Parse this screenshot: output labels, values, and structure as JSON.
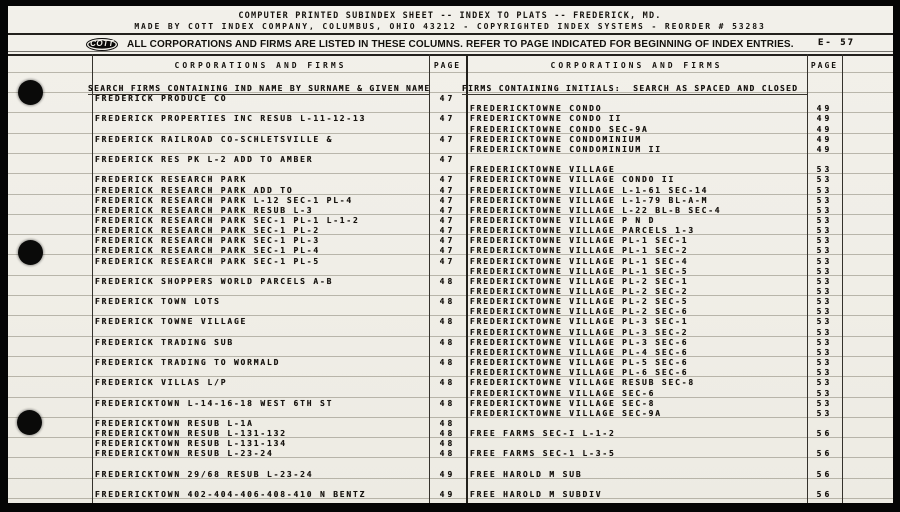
{
  "header": {
    "title_line1": "COMPUTER PRINTED SUBINDEX SHEET -- INDEX TO PLATS -- FREDERICK, MD.",
    "title_line2": "MADE BY COTT INDEX COMPANY, COLUMBUS, OHIO 43212 - COPYRIGHTED INDEX SYSTEMS - REORDER # 53283",
    "logo_text": "COTT",
    "instruction": "ALL CORPORATIONS AND FIRMS ARE LISTED IN THESE COLUMNS. REFER TO PAGE INDICATED FOR BEGINNING OF INDEX ENTRIES.",
    "sheet_code": "E- 57"
  },
  "colors": {
    "paper": "#f1efe8",
    "ink": "#16130f",
    "ruling": "#8b8779",
    "frame": "#050505"
  },
  "table": {
    "left": {
      "name_header": "CORPORATIONS AND FIRMS",
      "page_header": "PAGE",
      "groups": [
        [
          {
            "name": "SEARCH FIRMS CONTAINING IND NAME BY SURNAME & GIVEN NAME",
            "page": "",
            "note": true
          },
          {
            "name": "FREDERICK PRODUCE CO",
            "page": "47"
          }
        ],
        [
          {
            "name": "FREDERICK PROPERTIES INC RESUB L-11-12-13",
            "page": "47"
          }
        ],
        [
          {
            "name": "FREDERICK RAILROAD CO-SCHLETSVILLE &",
            "page": "47"
          }
        ],
        [
          {
            "name": "FREDERICK RES PK L-2 ADD TO AMBER",
            "page": "47"
          }
        ],
        [
          {
            "name": "FREDERICK RESEARCH PARK",
            "page": "47"
          },
          {
            "name": "FREDERICK RESEARCH PARK ADD TO",
            "page": "47"
          },
          {
            "name": "FREDERICK RESEARCH PARK L-12 SEC-1 PL-4",
            "page": "47"
          },
          {
            "name": "FREDERICK RESEARCH PARK RESUB L-3",
            "page": "47"
          },
          {
            "name": "FREDERICK RESEARCH PARK SEC-1 PL-1 L-1-2",
            "page": "47"
          },
          {
            "name": "FREDERICK RESEARCH PARK SEC-1 PL-2",
            "page": "47"
          },
          {
            "name": "FREDERICK RESEARCH PARK SEC-1 PL-3",
            "page": "47"
          },
          {
            "name": "FREDERICK RESEARCH PARK SEC-1 PL-4",
            "page": "47"
          },
          {
            "name": "FREDERICK RESEARCH PARK SEC-1 PL-5",
            "page": "47"
          }
        ],
        [
          {
            "name": "FREDERICK SHOPPERS WORLD PARCELS A-B",
            "page": "48"
          }
        ],
        [
          {
            "name": "FREDERICK TOWN LOTS",
            "page": "48"
          }
        ],
        [
          {
            "name": "FREDERICK TOWNE VILLAGE",
            "page": "48"
          }
        ],
        [
          {
            "name": "FREDERICK TRADING SUB",
            "page": "48"
          }
        ],
        [
          {
            "name": "FREDERICK TRADING TO WORMALD",
            "page": "48"
          }
        ],
        [
          {
            "name": "FREDERICK VILLAS L/P",
            "page": "48"
          }
        ],
        [
          {
            "name": "FREDERICKTOWN L-14-16-18 WEST 6TH ST",
            "page": "48"
          }
        ],
        [
          {
            "name": "FREDERICKTOWN RESUB L-1A",
            "page": "48"
          },
          {
            "name": "FREDERICKTOWN RESUB L-131-132",
            "page": "48"
          },
          {
            "name": "FREDERICKTOWN RESUB L-131-134",
            "page": "48"
          },
          {
            "name": "FREDERICKTOWN RESUB L-23-24",
            "page": "48"
          }
        ],
        [
          {
            "name": "FREDERICKTOWN 29/68 RESUB L-23-24",
            "page": "49"
          }
        ],
        [
          {
            "name": "FREDERICKTOWN 402-404-406-408-410 N BENTZ",
            "page": "49"
          }
        ]
      ]
    },
    "right": {
      "name_header": "CORPORATIONS AND FIRMS",
      "page_header": "PAGE",
      "groups": [
        [
          {
            "name": "FIRMS CONTAINING INITIALS:  SEARCH AS SPACED AND CLOSED",
            "page": "",
            "note": true
          }
        ],
        [
          {
            "name": "FREDERICKTOWNE CONDO",
            "page": "49"
          },
          {
            "name": "FREDERICKTOWNE CONDO II",
            "page": "49"
          },
          {
            "name": "FREDERICKTOWNE CONDO SEC-9A",
            "page": "49"
          },
          {
            "name": "FREDERICKTOWNE CONDOMINIUM",
            "page": "49"
          },
          {
            "name": "FREDERICKTOWNE CONDOMINIUM II",
            "page": "49"
          }
        ],
        [
          {
            "name": "FREDERICKTOWNE VILLAGE",
            "page": "53"
          },
          {
            "name": "FREDERICKTOWNE VILLAGE CONDO II",
            "page": "53"
          },
          {
            "name": "FREDERICKTOWNE VILLAGE L-1-61 SEC-14",
            "page": "53"
          },
          {
            "name": "FREDERICKTOWNE VILLAGE L-1-79 BL-A-M",
            "page": "53"
          },
          {
            "name": "FREDERICKTOWNE VILLAGE L-22 BL-B SEC-4",
            "page": "53"
          },
          {
            "name": "FREDERICKTOWNE VILLAGE P N D",
            "page": "53"
          },
          {
            "name": "FREDERICKTOWNE VILLAGE PARCELS 1-3",
            "page": "53"
          },
          {
            "name": "FREDERICKTOWNE VILLAGE PL-1 SEC-1",
            "page": "53"
          },
          {
            "name": "FREDERICKTOWNE VILLAGE PL-1 SEC-2",
            "page": "53"
          },
          {
            "name": "FREDERICKTOWNE VILLAGE PL-1 SEC-4",
            "page": "53"
          },
          {
            "name": "FREDERICKTOWNE VILLAGE PL-1 SEC-5",
            "page": "53"
          },
          {
            "name": "FREDERICKTOWNE VILLAGE PL-2 SEC-1",
            "page": "53"
          },
          {
            "name": "FREDERICKTOWNE VILLAGE PL-2 SEC-2",
            "page": "53"
          },
          {
            "name": "FREDERICKTOWNE VILLAGE PL-2 SEC-5",
            "page": "53"
          },
          {
            "name": "FREDERICKTOWNE VILLAGE PL-2 SEC-6",
            "page": "53"
          },
          {
            "name": "FREDERICKTOWNE VILLAGE PL-3 SEC-1",
            "page": "53"
          },
          {
            "name": "FREDERICKTOWNE VILLAGE PL-3 SEC-2",
            "page": "53"
          },
          {
            "name": "FREDERICKTOWNE VILLAGE PL-3 SEC-6",
            "page": "53"
          },
          {
            "name": "FREDERICKTOWNE VILLAGE PL-4 SEC-6",
            "page": "53"
          },
          {
            "name": "FREDERICKTOWNE VILLAGE PL-5 SEC-6",
            "page": "53"
          },
          {
            "name": "FREDERICKTOWNE VILLAGE PL-6 SEC-6",
            "page": "53"
          },
          {
            "name": "FREDERICKTOWNE VILLAGE RESUB SEC-8",
            "page": "53"
          },
          {
            "name": "FREDERICKTOWNE VILLAGE SEC-6",
            "page": "53"
          },
          {
            "name": "FREDERICKTOWNE VILLAGE SEC-8",
            "page": "53"
          },
          {
            "name": "FREDERICKTOWNE VILLAGE SEC-9A",
            "page": "53"
          }
        ],
        [
          {
            "name": "FREE FARMS SEC-I L-1-2",
            "page": "56"
          }
        ],
        [
          {
            "name": "FREE FARMS SEC-1 L-3-5",
            "page": "56"
          }
        ],
        [
          {
            "name": "FREE HAROLD M SUB",
            "page": "56"
          }
        ],
        [
          {
            "name": "FREE HAROLD M SUBDIV",
            "page": "56"
          }
        ]
      ]
    }
  }
}
